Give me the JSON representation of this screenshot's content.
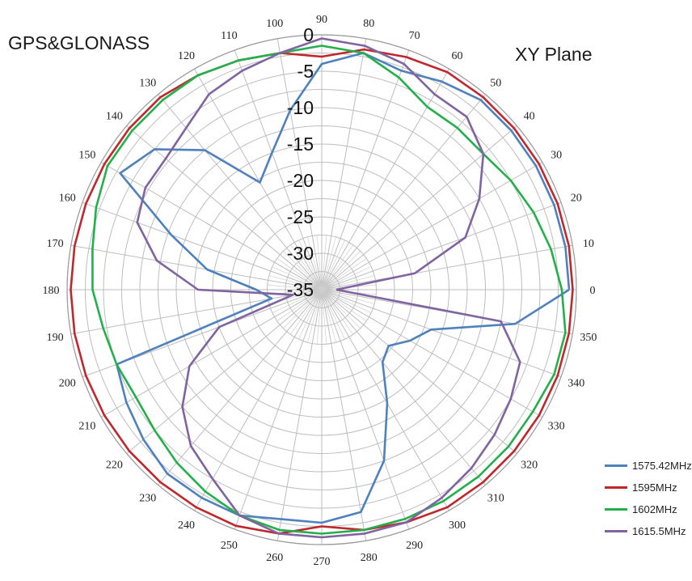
{
  "chart_data": {
    "type": "polar-line",
    "title_left": "GPS&GLONASS",
    "title_right": "XY Plane",
    "angle_ticks": [
      0,
      10,
      20,
      30,
      40,
      50,
      60,
      70,
      80,
      90,
      100,
      110,
      120,
      130,
      140,
      150,
      160,
      170,
      180,
      190,
      200,
      210,
      220,
      230,
      240,
      250,
      260,
      270,
      280,
      290,
      300,
      310,
      320,
      330,
      340,
      350
    ],
    "radial_ticks": [
      0,
      -5,
      -10,
      -15,
      -20,
      -25,
      -30,
      -35
    ],
    "radial_range": [
      -35,
      0
    ],
    "grid": true,
    "legend_position": "bottom-right",
    "angles": [
      0,
      10,
      20,
      30,
      40,
      50,
      60,
      70,
      80,
      90,
      100,
      110,
      120,
      130,
      140,
      150,
      160,
      170,
      180,
      190,
      200,
      210,
      220,
      230,
      240,
      250,
      260,
      270,
      280,
      290,
      300,
      310,
      320,
      330,
      340,
      350
    ],
    "series": [
      {
        "name": "1575.42MHz",
        "color": "#4f81bd",
        "values": [
          -1,
          -1,
          -1,
          -1,
          -1,
          -1,
          -2,
          -3,
          -2,
          -4,
          -10,
          -15,
          -18,
          -10,
          -5,
          -3,
          -13,
          -19,
          -26,
          -28,
          -5,
          -4,
          -3,
          -2,
          -2,
          -2,
          -3,
          -3,
          -4,
          -10,
          -17,
          -22,
          -23,
          -21,
          -19,
          -8
        ]
      },
      {
        "name": "1595MHz",
        "color": "#c0272d",
        "values": [
          -0.5,
          -0.5,
          -0.5,
          -0.5,
          -0.5,
          -0.5,
          -0.5,
          -1,
          -1.5,
          -3,
          -2,
          -1.5,
          -1,
          -0.5,
          -0.5,
          -0.5,
          -0.5,
          -0.5,
          -0.5,
          -0.5,
          -0.5,
          -0.5,
          -0.5,
          -0.5,
          -0.5,
          -0.5,
          -1,
          -2.5,
          -1.5,
          -1,
          -0.5,
          -0.5,
          -0.5,
          -0.5,
          -0.5,
          -0.5
        ]
      },
      {
        "name": "1602MHz",
        "color": "#23b04b",
        "values": [
          -2,
          -3,
          -4,
          -5,
          -6,
          -6,
          -6,
          -4,
          -2,
          -1.5,
          -2,
          -1.5,
          -1,
          -1,
          -1,
          -1,
          -2,
          -3,
          -3.5,
          -4.5,
          -5,
          -5.5,
          -5,
          -4,
          -3,
          -2,
          -1.5,
          -1.5,
          -1.5,
          -1.5,
          -1.5,
          -1.5,
          -1.5,
          -1.5,
          -1,
          -1
        ]
      },
      {
        "name": "1615.5MHz",
        "color": "#8064a2",
        "values": [
          -33,
          -22,
          -14,
          -10,
          -6,
          -4,
          -4,
          -2,
          -1,
          -0.5,
          -2,
          -3,
          -4,
          -6,
          -7,
          -7,
          -8,
          -12,
          -18,
          -31,
          -20,
          -14,
          -10,
          -7,
          -5,
          -2,
          -1,
          -1,
          -1,
          -1,
          -2,
          -3,
          -4,
          -5,
          -6,
          -10
        ]
      }
    ]
  }
}
